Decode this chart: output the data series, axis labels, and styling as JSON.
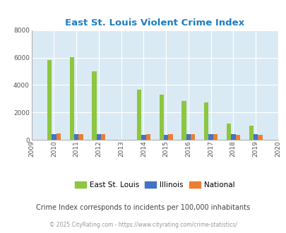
{
  "title": "East St. Louis Violent Crime Index",
  "subtitle": "Crime Index corresponds to incidents per 100,000 inhabitants",
  "footer": "© 2025 CityRating.com - https://www.cityrating.com/crime-statistics/",
  "all_years": [
    2009,
    2010,
    2011,
    2012,
    2013,
    2014,
    2015,
    2016,
    2017,
    2018,
    2019,
    2020
  ],
  "data_years": [
    2010,
    2011,
    2012,
    2014,
    2015,
    2016,
    2017,
    2018,
    2019
  ],
  "east_st_louis": [
    5850,
    6020,
    5020,
    3650,
    3300,
    2850,
    2750,
    1200,
    1050
  ],
  "illinois": [
    420,
    410,
    400,
    350,
    360,
    430,
    400,
    410,
    430
  ],
  "national": [
    440,
    420,
    390,
    390,
    390,
    430,
    410,
    380,
    380
  ],
  "ylim": [
    0,
    8000
  ],
  "yticks": [
    0,
    2000,
    4000,
    6000,
    8000
  ],
  "bar_width": 0.2,
  "color_esl": "#8dc63f",
  "color_il": "#4472c4",
  "color_nat": "#ed7d31",
  "title_color": "#1f7ec2",
  "bg_color": "#daeaf4",
  "subtitle_color": "#444444",
  "footer_color": "#999999",
  "grid_color": "#ffffff",
  "legend_labels": [
    "East St. Louis",
    "Illinois",
    "National"
  ]
}
